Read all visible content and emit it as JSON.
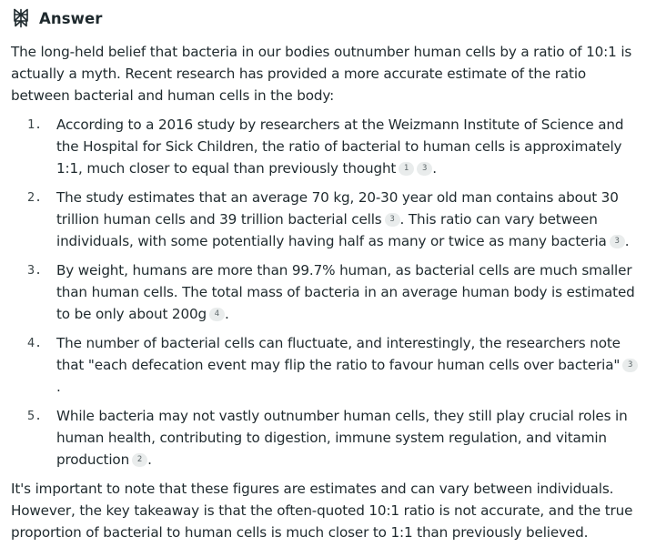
{
  "header": {
    "title": "Answer",
    "icon": "perplexity-logo-icon"
  },
  "answer": {
    "intro": "The long-held belief that bacteria in our bodies outnumber human cells by a ratio of 10:1 is actually a myth. Recent research has provided a more accurate estimate of the ratio between bacterial and human cells in the body:",
    "points": [
      {
        "number": "1.",
        "segments": [
          {
            "text": "According to a 2016 study by researchers at the Weizmann Institute of Science and the Hospital for Sick Children, the ratio of bacterial to human cells is approximately 1:1, much closer to equal than previously thought"
          },
          {
            "cite": "1"
          },
          {
            "cite": "3"
          },
          {
            "text": "."
          }
        ]
      },
      {
        "number": "2.",
        "segments": [
          {
            "text": "The study estimates that an average 70 kg, 20-30 year old man contains about 30 trillion human cells and 39 trillion bacterial cells"
          },
          {
            "cite": "3"
          },
          {
            "text": ". This ratio can vary between individuals, with some potentially having half as many or twice as many bacteria"
          },
          {
            "cite": "3"
          },
          {
            "text": "."
          }
        ]
      },
      {
        "number": "3.",
        "segments": [
          {
            "text": "By weight, humans are more than 99.7% human, as bacterial cells are much smaller than human cells. The total mass of bacteria in an average human body is estimated to be only about 200g"
          },
          {
            "cite": "4"
          },
          {
            "text": "."
          }
        ]
      },
      {
        "number": "4.",
        "segments": [
          {
            "text": "The number of bacterial cells can fluctuate, and interestingly, the researchers note that \"each defecation event may flip the ratio to favour human cells over bacteria\""
          },
          {
            "cite": "3"
          },
          {
            "text": "."
          }
        ]
      },
      {
        "number": "5.",
        "segments": [
          {
            "text": "While bacteria may not vastly outnumber human cells, they still play crucial roles in human health, contributing to digestion, immune system regulation, and vitamin production"
          },
          {
            "cite": "2"
          },
          {
            "text": "."
          }
        ]
      }
    ],
    "outro": "It's important to note that these figures are estimates and can vary between individuals. However, the key takeaway is that the often-quoted 10:1 ratio is not accurate, and the true proportion of bacterial to human cells is much closer to 1:1 than previously believed."
  }
}
